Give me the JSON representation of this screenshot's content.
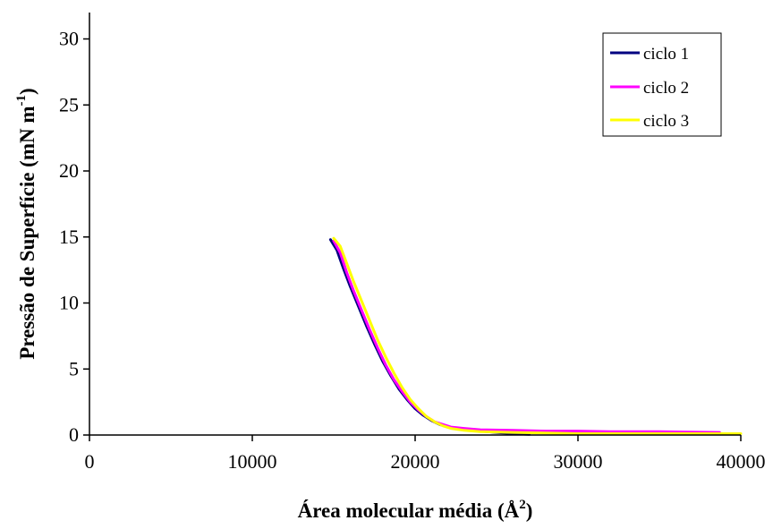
{
  "chart_data": {
    "type": "line",
    "xlabel": {
      "main": "Área molecular média (Å",
      "sup": "2",
      "tail": ")"
    },
    "ylabel": {
      "main": "Pressão de Superfície (mN m",
      "sup": "-1",
      "tail": ")"
    },
    "xlim": [
      0,
      40000
    ],
    "ylim": [
      0,
      32
    ],
    "x_ticks": [
      0,
      10000,
      20000,
      30000,
      40000
    ],
    "y_ticks": [
      0,
      5,
      10,
      15,
      20,
      25,
      30
    ],
    "grid": false,
    "legend_position": "top-right",
    "series": [
      {
        "name": "ciclo 1",
        "color": "#000080",
        "points": [
          [
            14800,
            14.8
          ],
          [
            15200,
            14.0
          ],
          [
            15600,
            12.6
          ],
          [
            16000,
            11.3
          ],
          [
            16500,
            9.8
          ],
          [
            17000,
            8.3
          ],
          [
            17500,
            6.9
          ],
          [
            18000,
            5.6
          ],
          [
            18500,
            4.5
          ],
          [
            19000,
            3.5
          ],
          [
            19500,
            2.7
          ],
          [
            20000,
            2.0
          ],
          [
            20500,
            1.5
          ],
          [
            21000,
            1.1
          ],
          [
            21500,
            0.8
          ],
          [
            22000,
            0.6
          ],
          [
            22500,
            0.5
          ],
          [
            23000,
            0.4
          ],
          [
            24000,
            0.3
          ],
          [
            25000,
            0.2
          ],
          [
            26000,
            0.1
          ],
          [
            27000,
            0.05
          ]
        ]
      },
      {
        "name": "ciclo 2",
        "color": "#FF00FF",
        "points": [
          [
            15000,
            14.7
          ],
          [
            15400,
            13.8
          ],
          [
            15800,
            12.3
          ],
          [
            16200,
            11.0
          ],
          [
            16700,
            9.5
          ],
          [
            17200,
            8.0
          ],
          [
            17700,
            6.6
          ],
          [
            18200,
            5.3
          ],
          [
            18700,
            4.2
          ],
          [
            19200,
            3.3
          ],
          [
            19700,
            2.5
          ],
          [
            20200,
            1.9
          ],
          [
            20700,
            1.4
          ],
          [
            21200,
            1.0
          ],
          [
            21700,
            0.8
          ],
          [
            22200,
            0.6
          ],
          [
            23000,
            0.5
          ],
          [
            24000,
            0.4
          ],
          [
            26000,
            0.35
          ],
          [
            28000,
            0.3
          ],
          [
            30000,
            0.3
          ],
          [
            32000,
            0.25
          ],
          [
            35000,
            0.25
          ],
          [
            38700,
            0.2
          ]
        ]
      },
      {
        "name": "ciclo 3",
        "color": "#FFFF00",
        "points": [
          [
            15000,
            14.9
          ],
          [
            15400,
            14.3
          ],
          [
            15800,
            13.0
          ],
          [
            16200,
            11.7
          ],
          [
            16700,
            10.2
          ],
          [
            17200,
            8.7
          ],
          [
            17700,
            7.2
          ],
          [
            18200,
            5.9
          ],
          [
            18700,
            4.7
          ],
          [
            19200,
            3.6
          ],
          [
            19700,
            2.7
          ],
          [
            20200,
            2.0
          ],
          [
            20700,
            1.4
          ],
          [
            21200,
            1.0
          ],
          [
            21700,
            0.7
          ],
          [
            22200,
            0.5
          ],
          [
            23000,
            0.35
          ],
          [
            24000,
            0.25
          ],
          [
            26000,
            0.2
          ],
          [
            28000,
            0.15
          ],
          [
            30000,
            0.1
          ],
          [
            34000,
            0.1
          ],
          [
            37000,
            0.1
          ],
          [
            40000,
            0.1
          ]
        ]
      }
    ]
  }
}
